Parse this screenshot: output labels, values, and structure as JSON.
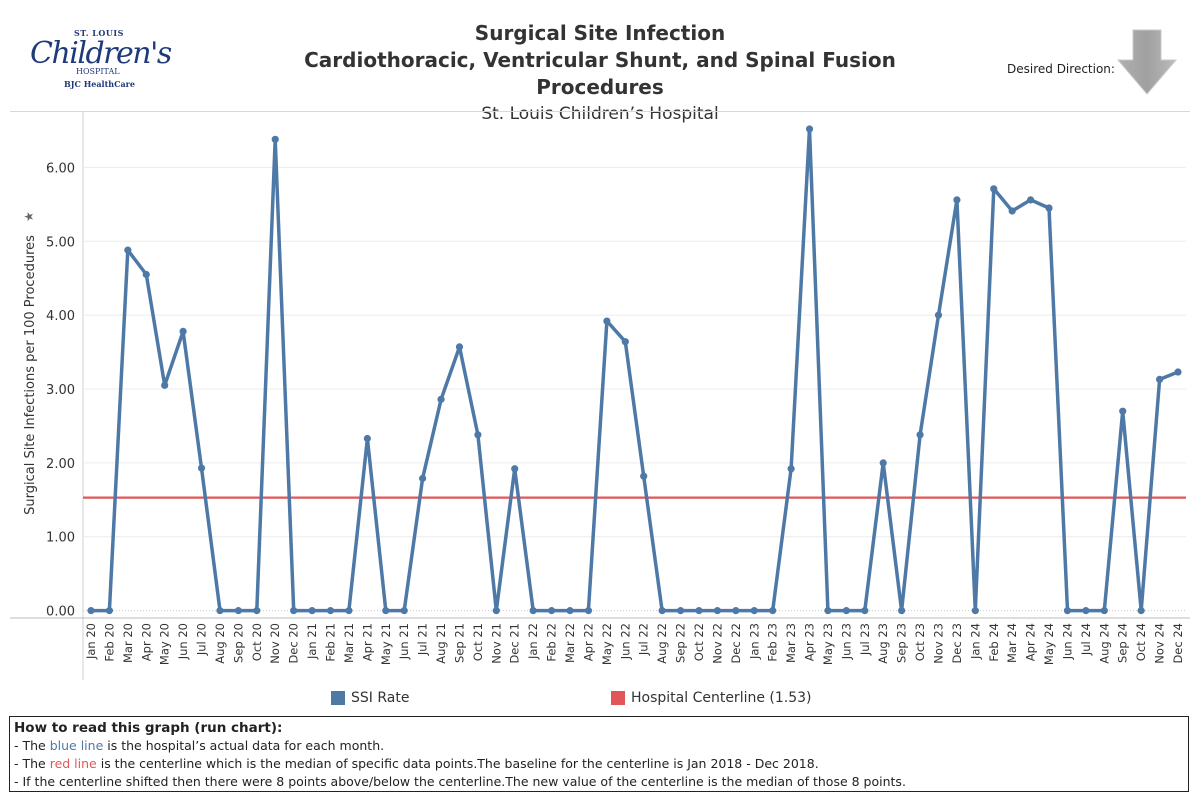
{
  "logo": {
    "top": "ST. LOUIS",
    "main": "Children's",
    "sub": "HOSPITAL",
    "network": "BJC HealthCare"
  },
  "header": {
    "title": "Surgical Site Infection",
    "subtitle": "Cardiothoracic, Ventricular Shunt, and Spinal Fusion Procedures",
    "hospital": "St. Louis Children’s Hospital",
    "desired_direction_label": "Desired Direction:",
    "desired_direction": "down-arrow-icon"
  },
  "chart_data": {
    "type": "line",
    "ylabel": "Surgical Site Infections per 100 Procedures",
    "ylim": [
      -0.1,
      6.75
    ],
    "yticks": [
      "0.00",
      "1.00",
      "2.00",
      "3.00",
      "4.00",
      "5.00",
      "6.00"
    ],
    "categories": [
      "Jan 20",
      "Feb 20",
      "Mar 20",
      "Apr 20",
      "May 20",
      "Jun 20",
      "Jul 20",
      "Aug 20",
      "Sep 20",
      "Oct 20",
      "Nov 20",
      "Dec 20",
      "Jan 21",
      "Feb 21",
      "Mar 21",
      "Apr 21",
      "May 21",
      "Jun 21",
      "Jul 21",
      "Aug 21",
      "Sep 21",
      "Oct 21",
      "Nov 21",
      "Dec 21",
      "Jan 22",
      "Feb 22",
      "Mar 22",
      "Apr 22",
      "May 22",
      "Jun 22",
      "Jul 22",
      "Aug 22",
      "Sep 22",
      "Oct 22",
      "Nov 22",
      "Dec 22",
      "Jan 23",
      "Feb 23",
      "Mar 23",
      "Apr 23",
      "May 23",
      "Jun 23",
      "Jul 23",
      "Aug 23",
      "Sep 23",
      "Oct 23",
      "Nov 23",
      "Dec 23",
      "Jan 24",
      "Feb 24",
      "Mar 24",
      "Apr 24",
      "May 24",
      "Jun 24",
      "Jul 24",
      "Aug 24",
      "Sep 24",
      "Oct 24",
      "Nov 24",
      "Dec 24"
    ],
    "series": [
      {
        "name": "SSI Rate",
        "color": "#4e79a7",
        "values": [
          0,
          0,
          4.88,
          4.55,
          3.05,
          3.78,
          1.93,
          0,
          0,
          0,
          6.38,
          0,
          0,
          0,
          0,
          2.33,
          0,
          0,
          1.79,
          2.86,
          3.57,
          2.38,
          0,
          1.92,
          0,
          0,
          0,
          0,
          3.92,
          3.64,
          1.82,
          0,
          0,
          0,
          0,
          0,
          0,
          0,
          1.92,
          6.52,
          0,
          0,
          0,
          2.0,
          0,
          2.38,
          4.0,
          5.56,
          0,
          5.71,
          5.41,
          5.56,
          5.45,
          0,
          0,
          0,
          2.7,
          0,
          3.13,
          3.23
        ]
      },
      {
        "name": "Hospital Centerline (1.53)",
        "color": "#e15759",
        "constant": 1.53
      }
    ],
    "legend_position": "bottom",
    "grid": true
  },
  "howto": {
    "heading": "How to read this graph (run chart):",
    "line1_pre": "- The ",
    "line1_colored": "blue line",
    "line1_post": " is the hospital’s actual data for each month.",
    "line2_pre": "- The ",
    "line2_colored": "red line",
    "line2_post": " is the centerline which is the median of specific data points.The baseline for the centerline is Jan 2018 - Dec 2018.",
    "line3": "- If the centerline shifted then there were 8 points above/below the centerline.The new value of the centerline is the median of those 8 points."
  }
}
